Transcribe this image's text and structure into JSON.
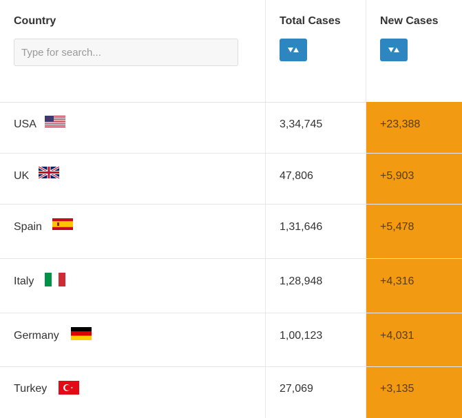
{
  "header": {
    "country_label": "Country",
    "total_label": "Total Cases",
    "new_label": "New Cases",
    "search_placeholder": "Type for search..."
  },
  "rows": [
    {
      "country": "USA",
      "flag": "us-flag-icon",
      "total": "3,34,745",
      "new": "+23,388"
    },
    {
      "country": "UK",
      "flag": "uk-flag-icon",
      "total": "47,806",
      "new": "+5,903"
    },
    {
      "country": "Spain",
      "flag": "spain-flag-icon",
      "total": "1,31,646",
      "new": "+5,478"
    },
    {
      "country": "Italy",
      "flag": "italy-flag-icon",
      "total": "1,28,948",
      "new": "+4,316"
    },
    {
      "country": "Germany",
      "flag": "germany-flag-icon",
      "total": "1,00,123",
      "new": "+4,031"
    },
    {
      "country": "Turkey",
      "flag": "turkey-flag-icon",
      "total": "27,069",
      "new": "+3,135"
    }
  ],
  "colors": {
    "highlight": "#f29b12",
    "sort_button": "#2e86c1"
  }
}
